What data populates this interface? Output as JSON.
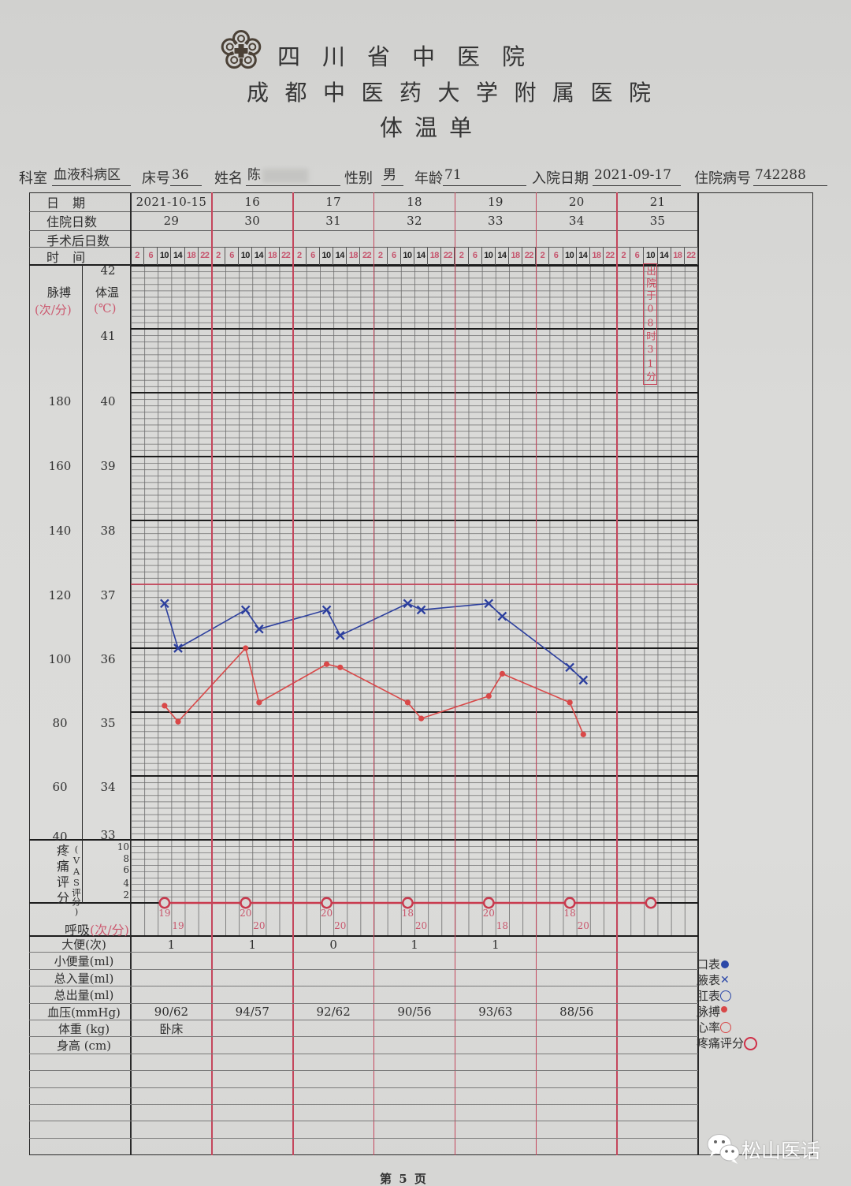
{
  "header": {
    "hospital_name": "四川省中医院",
    "hospital_affiliation": "成都中医药大学附属医院",
    "form_title": "体温单"
  },
  "patient": {
    "department_label": "科室",
    "department": "血液科病区",
    "bed_label": "床号",
    "bed": "36",
    "name_label": "姓名",
    "name_visible": "陈",
    "sex_label": "性别",
    "sex": "男",
    "age_label": "年龄",
    "age": "71",
    "admission_date_label": "入院日期",
    "admission_date": "2021-09-17",
    "record_no_label": "住院病号",
    "record_no": "742288"
  },
  "grid_header": {
    "row_labels": {
      "date": "日 期",
      "hospital_day": "住院日数",
      "post_op_day": "手术后日数",
      "time": "时 间"
    },
    "days": [
      {
        "date": "2021-10-15",
        "hospital_day": "29",
        "post_op_day": ""
      },
      {
        "date": "16",
        "hospital_day": "30",
        "post_op_day": ""
      },
      {
        "date": "17",
        "hospital_day": "31",
        "post_op_day": ""
      },
      {
        "date": "18",
        "hospital_day": "32",
        "post_op_day": ""
      },
      {
        "date": "19",
        "hospital_day": "33",
        "post_op_day": ""
      },
      {
        "date": "20",
        "hospital_day": "34",
        "post_op_day": ""
      },
      {
        "date": "21",
        "hospital_day": "35",
        "post_op_day": ""
      }
    ],
    "time_slots": [
      "2",
      "6",
      "10",
      "14",
      "18",
      "22"
    ]
  },
  "axis_labels": {
    "pulse_title": "脉搏",
    "pulse_unit": "(次/分)",
    "temp_title": "体温",
    "temp_unit": "(℃)",
    "pulse_ticks": [
      "180",
      "160",
      "140",
      "120",
      "100",
      "80",
      "60",
      "40"
    ],
    "temp_ticks": [
      "42",
      "41",
      "40",
      "39",
      "38",
      "37",
      "36",
      "35",
      "34",
      "33"
    ],
    "pain_title": "疼痛评分",
    "pain_subtitle": "(VAS评分)",
    "pain_ticks": [
      "10",
      "8",
      "6",
      "4",
      "2"
    ],
    "resp_title": "呼吸",
    "resp_unit": "(次/分)"
  },
  "daily_table": {
    "rows": [
      {
        "label": "大便(次)",
        "values": [
          "1",
          "1",
          "0",
          "1",
          "1",
          "",
          ""
        ]
      },
      {
        "label": "小便量(ml)",
        "values": [
          "",
          "",
          "",
          "",
          "",
          "",
          ""
        ]
      },
      {
        "label": "总入量(ml)",
        "values": [
          "",
          "",
          "",
          "",
          "",
          "",
          ""
        ]
      },
      {
        "label": "总出量(ml)",
        "values": [
          "",
          "",
          "",
          "",
          "",
          "",
          ""
        ]
      },
      {
        "label": "血压(mmHg)",
        "values": [
          "90/62",
          "94/57",
          "92/62",
          "90/56",
          "93/63",
          "88/56",
          ""
        ]
      },
      {
        "label": "体重 (kg)",
        "values": [
          "卧床",
          "",
          "",
          "",
          "",
          "",
          ""
        ]
      },
      {
        "label": "身高 (cm)",
        "values": [
          "",
          "",
          "",
          "",
          "",
          "",
          ""
        ]
      }
    ]
  },
  "legend": [
    {
      "label": "口表",
      "symbol": "filled-dot",
      "color": "#2c48a8"
    },
    {
      "label": "腋表",
      "symbol": "cross",
      "color": "#2c48a8"
    },
    {
      "label": "肛表",
      "symbol": "hollow-circle",
      "color": "#2c48a8"
    },
    {
      "label": "脉搏",
      "symbol": "filled-dot",
      "color": "#d84848"
    },
    {
      "label": "心率",
      "symbol": "hollow-circle",
      "color": "#d84848"
    },
    {
      "label": "疼痛评分",
      "symbol": "hollow-circle",
      "color": "#cf3048"
    }
  ],
  "footer": {
    "page_label": "第 5 页"
  },
  "watermark": {
    "text": "松山医话"
  },
  "colors": {
    "temperature": "#2c3f9e",
    "pulse": "#d94848",
    "pain": "#c93a4e",
    "day_divider": "#c4465c",
    "reference_37": "#c8465a"
  },
  "chart_data": {
    "type": "line",
    "title": "体温单",
    "x_days": [
      "2021-10-15",
      "2021-10-16",
      "2021-10-17",
      "2021-10-18",
      "2021-10-19",
      "2021-10-20",
      "2021-10-21"
    ],
    "time_slots": [
      "2",
      "6",
      "10",
      "14",
      "18",
      "22"
    ],
    "xlabel": "时间",
    "y_axes": {
      "temperature": {
        "label": "体温 (℃)",
        "min": 33,
        "max": 42,
        "ticks": [
          42,
          41,
          40,
          39,
          38,
          37,
          36,
          35,
          34,
          33
        ]
      },
      "pulse": {
        "label": "脉搏 (次/分)",
        "min": 40,
        "max": 220,
        "ticks": [
          180,
          160,
          140,
          120,
          100,
          80,
          60,
          40
        ]
      },
      "pain": {
        "label": "疼痛评分 (VAS评分)",
        "min": 0,
        "max": 10,
        "ticks": [
          10,
          8,
          6,
          4,
          2
        ]
      }
    },
    "grid": true,
    "reference_lines": [
      {
        "axis": "temperature",
        "value": 37,
        "color": "#c8465a"
      }
    ],
    "series": [
      {
        "id": "axillary-temp",
        "name": "腋表",
        "axis": "temperature",
        "marker": "x",
        "color": "#2c3f9e",
        "points": [
          {
            "day": 0,
            "time": "10",
            "value": 36.7
          },
          {
            "day": 0,
            "time": "14",
            "value": 36.0
          },
          {
            "day": 1,
            "time": "10",
            "value": 36.6
          },
          {
            "day": 1,
            "time": "14",
            "value": 36.3
          },
          {
            "day": 2,
            "time": "10",
            "value": 36.6
          },
          {
            "day": 2,
            "time": "14",
            "value": 36.2
          },
          {
            "day": 3,
            "time": "10",
            "value": 36.7
          },
          {
            "day": 3,
            "time": "14",
            "value": 36.6
          },
          {
            "day": 4,
            "time": "10",
            "value": 36.7
          },
          {
            "day": 4,
            "time": "14",
            "value": 36.5
          },
          {
            "day": 5,
            "time": "10",
            "value": 35.7
          },
          {
            "day": 5,
            "time": "14",
            "value": 35.5
          }
        ]
      },
      {
        "id": "pulse",
        "name": "脉搏",
        "axis": "pulse",
        "marker": "dot",
        "color": "#d94848",
        "points": [
          {
            "day": 0,
            "time": "10",
            "value": 82
          },
          {
            "day": 0,
            "time": "14",
            "value": 77
          },
          {
            "day": 1,
            "time": "10",
            "value": 100
          },
          {
            "day": 1,
            "time": "14",
            "value": 83
          },
          {
            "day": 2,
            "time": "10",
            "value": 95
          },
          {
            "day": 2,
            "time": "14",
            "value": 94
          },
          {
            "day": 3,
            "time": "10",
            "value": 83
          },
          {
            "day": 3,
            "time": "14",
            "value": 78
          },
          {
            "day": 4,
            "time": "10",
            "value": 85
          },
          {
            "day": 4,
            "time": "14",
            "value": 92
          },
          {
            "day": 5,
            "time": "10",
            "value": 83
          },
          {
            "day": 5,
            "time": "14",
            "value": 73
          }
        ]
      },
      {
        "id": "pain-score",
        "name": "疼痛评分",
        "axis": "pain",
        "marker": "circle",
        "color": "#c93a4e",
        "points": [
          {
            "day": 0,
            "time": "10",
            "value": 0
          },
          {
            "day": 1,
            "time": "10",
            "value": 0
          },
          {
            "day": 2,
            "time": "10",
            "value": 0
          },
          {
            "day": 3,
            "time": "10",
            "value": 0
          },
          {
            "day": 4,
            "time": "10",
            "value": 0
          },
          {
            "day": 5,
            "time": "10",
            "value": 0
          },
          {
            "day": 6,
            "time": "10",
            "value": 0
          }
        ]
      }
    ],
    "respiration": {
      "name": "呼吸 (次/分)",
      "color": "#c8566c",
      "points": [
        {
          "day": 0,
          "time": "10",
          "value": 19
        },
        {
          "day": 0,
          "time": "14",
          "value": 19
        },
        {
          "day": 1,
          "time": "10",
          "value": 20
        },
        {
          "day": 1,
          "time": "14",
          "value": 20
        },
        {
          "day": 2,
          "time": "10",
          "value": 20
        },
        {
          "day": 2,
          "time": "14",
          "value": 20
        },
        {
          "day": 3,
          "time": "10",
          "value": 18
        },
        {
          "day": 3,
          "time": "14",
          "value": 20
        },
        {
          "day": 4,
          "time": "10",
          "value": 20
        },
        {
          "day": 4,
          "time": "14",
          "value": 18
        },
        {
          "day": 5,
          "time": "10",
          "value": 18
        },
        {
          "day": 5,
          "time": "14",
          "value": 20
        }
      ]
    },
    "annotations": [
      {
        "day": 6,
        "time": "10",
        "text": "出院于08时31分",
        "color": "#c8465a"
      }
    ],
    "legend_position": "right-bottom"
  }
}
